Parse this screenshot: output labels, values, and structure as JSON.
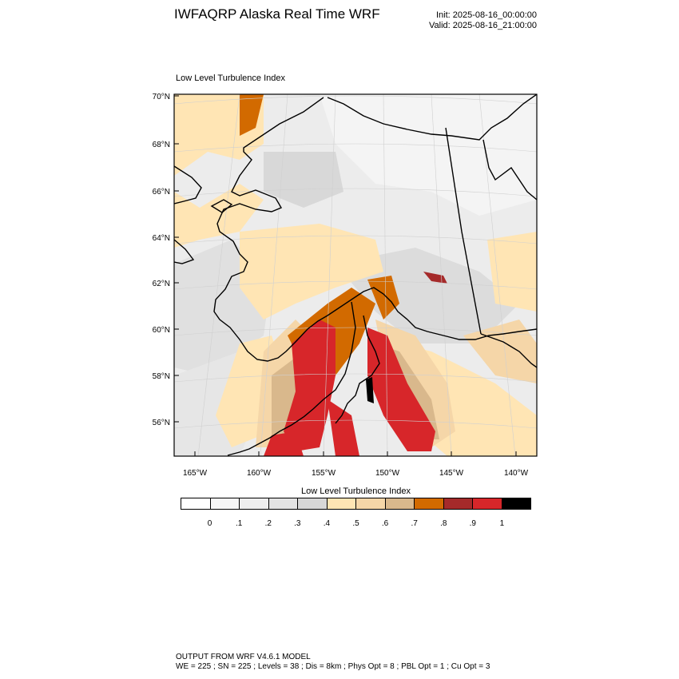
{
  "header": {
    "title": "IWFAQRP Alaska Real Time WRF",
    "init": "Init: 2025-08-16_00:00:00",
    "valid": "Valid: 2025-08-16_21:00:00"
  },
  "plot": {
    "title": "Low Level Turbulence Index",
    "lat_labels": [
      "70°N",
      "68°N",
      "66°N",
      "64°N",
      "62°N",
      "60°N",
      "58°N",
      "56°N"
    ],
    "lon_labels": [
      "165°W",
      "160°W",
      "155°W",
      "150°W",
      "145°W",
      "140°W"
    ]
  },
  "legend": {
    "title": "Low Level Turbulence Index",
    "colors": [
      "#ffffff",
      "#f6f6f6",
      "#eeeeee",
      "#e3e3e3",
      "#d7d7d7",
      "#ffe5b4",
      "#f5d6a8",
      "#d9b88c",
      "#d26a00",
      "#a52a2a",
      "#d7262a",
      "#000000"
    ],
    "labels": [
      "0",
      ".1",
      ".2",
      ".3",
      ".4",
      ".5",
      ".6",
      ".7",
      ".8",
      ".9",
      "1"
    ]
  },
  "footer": {
    "line1": "OUTPUT FROM WRF V4.6.1 MODEL",
    "line2": "WE = 225 ; SN = 225 ; Levels = 38 ; Dis = 8km ; Phys Opt = 8 ; PBL Opt = 1 ; Cu Opt = 3"
  }
}
